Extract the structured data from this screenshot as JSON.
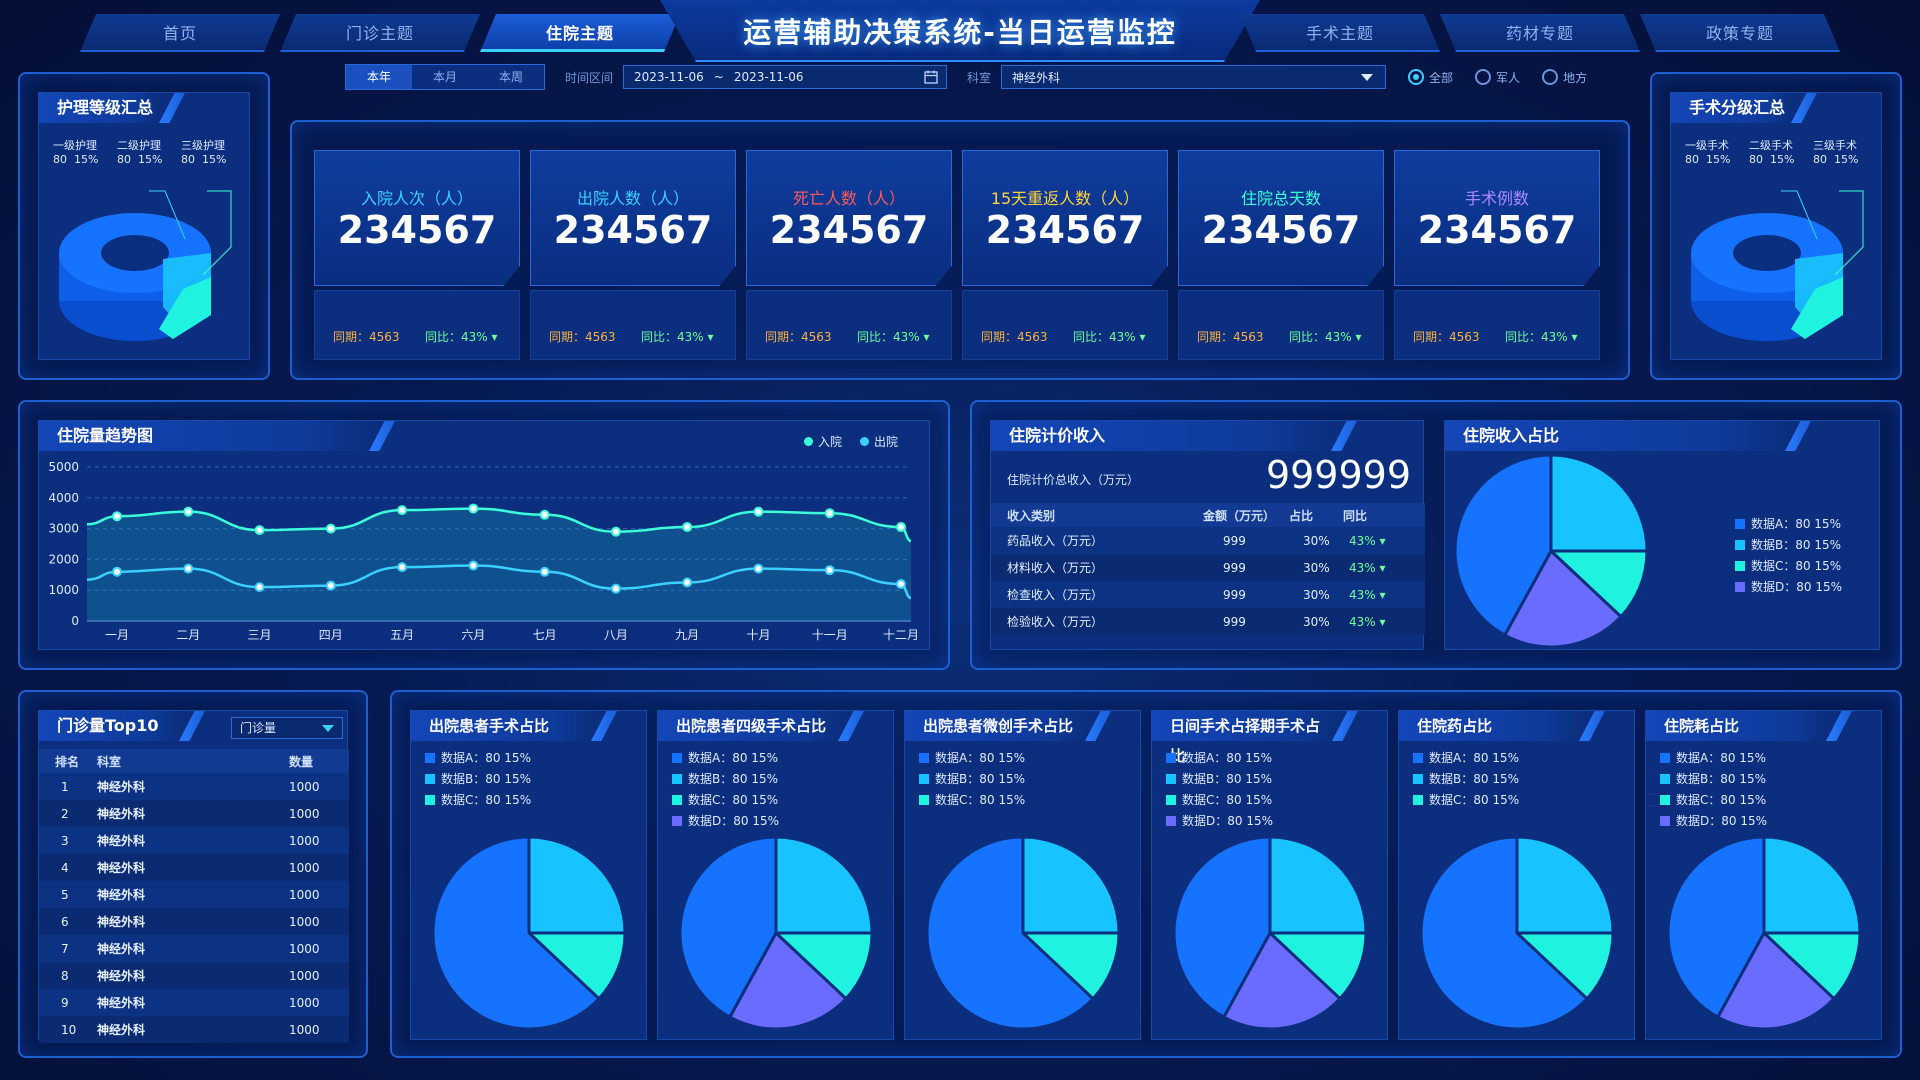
{
  "header": {
    "title": "运营辅助决策系统-当日运营监控",
    "nav_left": [
      "首页",
      "门诊主题",
      "住院主题"
    ],
    "nav_right": [
      "手术主题",
      "药材专题",
      "政策专题"
    ],
    "active_tab": "住院主题"
  },
  "filters": {
    "period_tabs": [
      "本年",
      "本月",
      "本周"
    ],
    "period_active": "本年",
    "range_label": "时间区间",
    "date_start": "2023-11-06",
    "date_sep": "~",
    "date_end": "2023-11-06",
    "dept_label": "科室",
    "dept_value": "神经外科",
    "radios": [
      "全部",
      "军人",
      "地方"
    ],
    "radio_active": "全部"
  },
  "nursing": {
    "title": "护理等级汇总",
    "levels": [
      {
        "name": "一级护理",
        "count": "80",
        "pct": "15%"
      },
      {
        "name": "二级护理",
        "count": "80",
        "pct": "15%"
      },
      {
        "name": "三级护理",
        "count": "80",
        "pct": "15%"
      }
    ]
  },
  "surgery_grade": {
    "title": "手术分级汇总",
    "levels": [
      {
        "name": "一级手术",
        "count": "80",
        "pct": "15%"
      },
      {
        "name": "二级手术",
        "count": "80",
        "pct": "15%"
      },
      {
        "name": "三级手术",
        "count": "80",
        "pct": "15%"
      }
    ]
  },
  "kpis": [
    {
      "label": "入院人次（人）",
      "value": "234567",
      "color": "#3ad0ff",
      "same_period": "同期：4563",
      "yoy": "同比：43%"
    },
    {
      "label": "出院人数（人）",
      "value": "234567",
      "color": "#3ad0ff",
      "same_period": "同期：4563",
      "yoy": "同比：43%"
    },
    {
      "label": "死亡人数（人）",
      "value": "234567",
      "color": "#ff5a5a",
      "same_period": "同期：4563",
      "yoy": "同比：43%"
    },
    {
      "label": "15天重返人数（人）",
      "value": "234567",
      "color": "#ffd23a",
      "same_period": "同期：4563",
      "yoy": "同比：43%"
    },
    {
      "label": "住院总天数",
      "value": "234567",
      "color": "#3affd8",
      "same_period": "同期：4563",
      "yoy": "同比：43%"
    },
    {
      "label": "手术例数",
      "value": "234567",
      "color": "#a98bff",
      "same_period": "同期：4563",
      "yoy": "同比：43%"
    }
  ],
  "trend": {
    "title": "住院量趋势图",
    "legend": [
      "入院",
      "出院"
    ]
  },
  "chart_data": [
    {
      "type": "line",
      "title": "住院量趋势图",
      "categories": [
        "一月",
        "二月",
        "三月",
        "四月",
        "五月",
        "六月",
        "七月",
        "八月",
        "九月",
        "十月",
        "十一月",
        "十二月"
      ],
      "ylim": [
        0,
        5000
      ],
      "yticks": [
        0,
        1000,
        2000,
        3000,
        4000,
        5000
      ],
      "series": [
        {
          "name": "入院",
          "color": "#3affd8",
          "values": [
            3400,
            3550,
            2950,
            3000,
            3600,
            3650,
            3450,
            2900,
            3050,
            3550,
            3500,
            3050
          ]
        },
        {
          "name": "出院",
          "color": "#3ad0ff",
          "values": [
            1600,
            1700,
            1100,
            1150,
            1750,
            1800,
            1600,
            1050,
            1250,
            1700,
            1650,
            1200
          ]
        }
      ]
    }
  ],
  "revenue": {
    "title": "住院计价收入",
    "total_label": "住院计价总收入（万元）",
    "total_value": "999999",
    "columns": [
      "收入类别",
      "金额（万元）",
      "占比",
      "同比"
    ],
    "rows": [
      {
        "name": "药品收入（万元）",
        "amount": "999",
        "ratio": "30%",
        "yoy": "43%"
      },
      {
        "name": "材料收入（万元）",
        "amount": "999",
        "ratio": "30%",
        "yoy": "43%"
      },
      {
        "name": "检查收入（万元）",
        "amount": "999",
        "ratio": "30%",
        "yoy": "43%"
      },
      {
        "name": "检验收入（万元）",
        "amount": "999",
        "ratio": "30%",
        "yoy": "43%"
      }
    ]
  },
  "income_share": {
    "title": "住院收入占比",
    "legend": [
      "数据A：80 15%",
      "数据B：80 15%",
      "数据C：80 15%",
      "数据D：80 15%"
    ],
    "colors": [
      "#1673ff",
      "#18c4ff",
      "#1ff3df",
      "#6a6cff"
    ]
  },
  "top10": {
    "title": "门诊量Top10",
    "select": "门诊量",
    "columns": [
      "排名",
      "科室",
      "数量"
    ],
    "rows": [
      {
        "rank": "1",
        "dept": "神经外科",
        "qty": "1000"
      },
      {
        "rank": "2",
        "dept": "神经外科",
        "qty": "1000"
      },
      {
        "rank": "3",
        "dept": "神经外科",
        "qty": "1000"
      },
      {
        "rank": "4",
        "dept": "神经外科",
        "qty": "1000"
      },
      {
        "rank": "5",
        "dept": "神经外科",
        "qty": "1000"
      },
      {
        "rank": "6",
        "dept": "神经外科",
        "qty": "1000"
      },
      {
        "rank": "7",
        "dept": "神经外科",
        "qty": "1000"
      },
      {
        "rank": "8",
        "dept": "神经外科",
        "qty": "1000"
      },
      {
        "rank": "9",
        "dept": "神经外科",
        "qty": "1000"
      },
      {
        "rank": "10",
        "dept": "神经外科",
        "qty": "1000"
      }
    ]
  },
  "pies": [
    {
      "title": "出院患者手术占比",
      "legend": [
        "数据A：80 15%",
        "数据B：80 15%",
        "数据C：80 15%"
      ]
    },
    {
      "title": "出院患者四级手术占比",
      "legend": [
        "数据A：80 15%",
        "数据B：80 15%",
        "数据C：80 15%",
        "数据D：80 15%"
      ]
    },
    {
      "title": "出院患者微创手术占比",
      "legend": [
        "数据A：80 15%",
        "数据B：80 15%",
        "数据C：80 15%"
      ]
    },
    {
      "title": "日间手术占择期手术占比",
      "legend": [
        "数据A：80 15%",
        "数据B：80 15%",
        "数据C：80 15%",
        "数据D：80 15%"
      ]
    },
    {
      "title": "住院药占比",
      "legend": [
        "数据A：80 15%",
        "数据B：80 15%",
        "数据C：80 15%"
      ]
    },
    {
      "title": "住院耗占比",
      "legend": [
        "数据A：80 15%",
        "数据B：80 15%",
        "数据C：80 15%",
        "数据D：80 15%"
      ]
    }
  ]
}
